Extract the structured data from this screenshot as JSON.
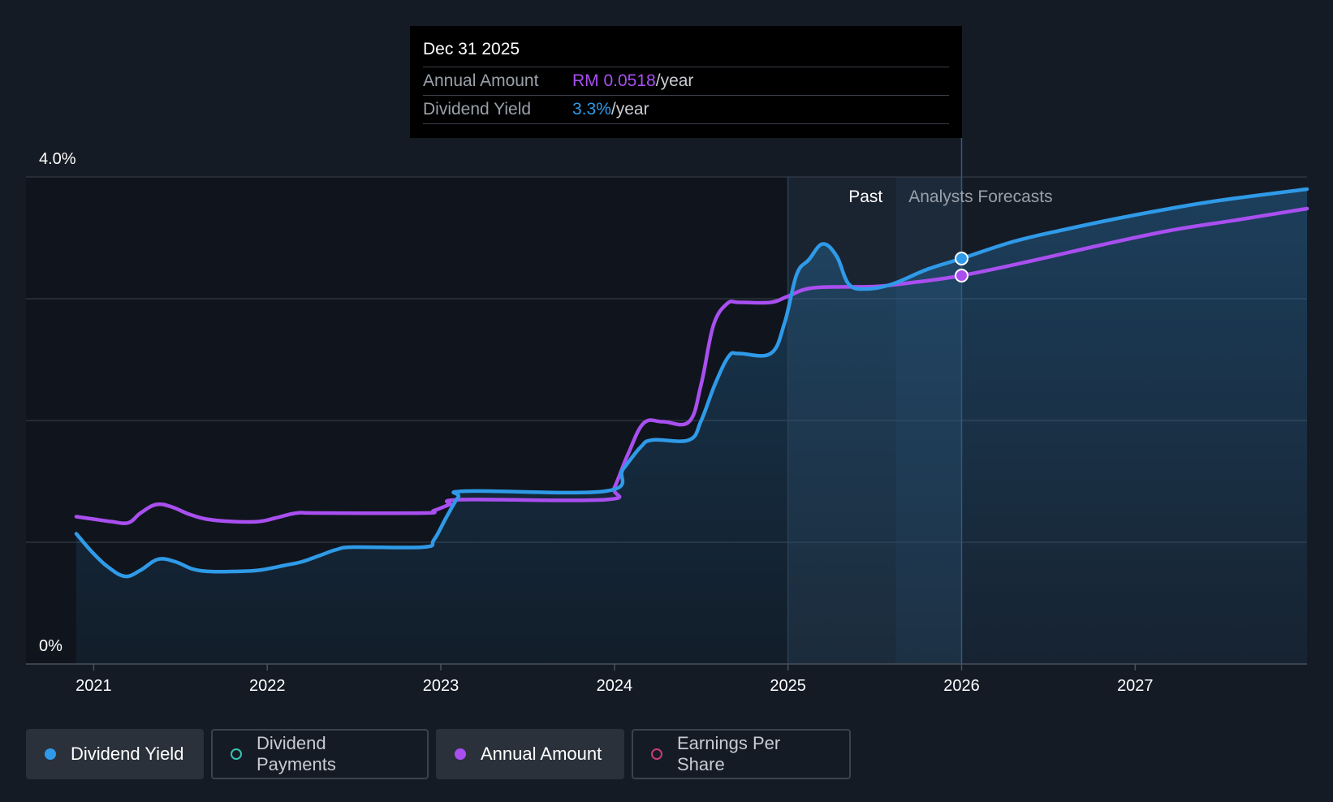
{
  "tooltip": {
    "date": "Dec 31 2025",
    "annual_amount_label": "Annual Amount",
    "annual_amount_value": "RM 0.0518",
    "annual_amount_unit": "/year",
    "dividend_yield_label": "Dividend Yield",
    "dividend_yield_value": "3.3%",
    "dividend_yield_unit": "/year"
  },
  "periods": {
    "past_label": "Past",
    "forecast_label": "Analysts Forecasts"
  },
  "legend": [
    {
      "label": "Dividend Yield",
      "color": "#2f9ae8",
      "active": true,
      "filled": true
    },
    {
      "label": "Dividend Payments",
      "color": "#36c2b0",
      "active": false,
      "filled": false
    },
    {
      "label": "Annual Amount",
      "color": "#a94ff0",
      "active": true,
      "filled": true
    },
    {
      "label": "Earnings Per Share",
      "color": "#c83c78",
      "active": false,
      "filled": false
    }
  ],
  "colors": {
    "background": "#151b25",
    "yield": "#2f9ae8",
    "amount": "#a94ff0",
    "grid": "#3a414c"
  },
  "chart_data": {
    "type": "line",
    "title": "",
    "xlabel": "",
    "ylabel": "",
    "x_ticks": [
      "2021",
      "2022",
      "2023",
      "2024",
      "2025",
      "2026",
      "2027"
    ],
    "y_ticks": [
      "0%",
      "4.0%"
    ],
    "ylim": [
      0,
      4.0
    ],
    "xlim": [
      2020.61,
      2027.99
    ],
    "past_start": 2025.0,
    "forecast_start": 2025.62,
    "hover_x": 2026.0,
    "series": [
      {
        "name": "Dividend Yield",
        "unit": "%",
        "points": [
          [
            2020.9,
            1.07
          ],
          [
            2020.99,
            0.92
          ],
          [
            2021.08,
            0.8
          ],
          [
            2021.18,
            0.72
          ],
          [
            2021.27,
            0.77
          ],
          [
            2021.37,
            0.86
          ],
          [
            2021.47,
            0.84
          ],
          [
            2021.57,
            0.78
          ],
          [
            2021.67,
            0.76
          ],
          [
            2021.8,
            0.76
          ],
          [
            2021.95,
            0.77
          ],
          [
            2022.1,
            0.81
          ],
          [
            2022.2,
            0.84
          ],
          [
            2022.3,
            0.89
          ],
          [
            2022.4,
            0.94
          ],
          [
            2022.5,
            0.96
          ],
          [
            2022.9,
            0.96
          ],
          [
            2022.96,
            1.02
          ],
          [
            2023.03,
            1.2
          ],
          [
            2023.1,
            1.37
          ],
          [
            2023.15,
            1.42
          ],
          [
            2023.95,
            1.42
          ],
          [
            2024.05,
            1.6
          ],
          [
            2024.15,
            1.78
          ],
          [
            2024.22,
            1.84
          ],
          [
            2024.43,
            1.84
          ],
          [
            2024.5,
            2.0
          ],
          [
            2024.58,
            2.3
          ],
          [
            2024.66,
            2.53
          ],
          [
            2024.72,
            2.55
          ],
          [
            2024.9,
            2.55
          ],
          [
            2024.98,
            2.8
          ],
          [
            2025.05,
            3.2
          ],
          [
            2025.12,
            3.32
          ],
          [
            2025.2,
            3.45
          ],
          [
            2025.28,
            3.35
          ],
          [
            2025.35,
            3.12
          ],
          [
            2025.45,
            3.08
          ],
          [
            2025.6,
            3.12
          ],
          [
            2025.8,
            3.24
          ],
          [
            2026.0,
            3.33
          ],
          [
            2026.3,
            3.47
          ],
          [
            2026.6,
            3.57
          ],
          [
            2026.9,
            3.66
          ],
          [
            2027.2,
            3.74
          ],
          [
            2027.5,
            3.81
          ],
          [
            2027.99,
            3.9
          ]
        ]
      },
      {
        "name": "Annual Amount",
        "unit": "RM",
        "points": [
          [
            2020.9,
            1.21
          ],
          [
            2021.0,
            1.19
          ],
          [
            2021.1,
            1.17
          ],
          [
            2021.2,
            1.16
          ],
          [
            2021.27,
            1.24
          ],
          [
            2021.36,
            1.31
          ],
          [
            2021.45,
            1.29
          ],
          [
            2021.55,
            1.23
          ],
          [
            2021.65,
            1.19
          ],
          [
            2021.8,
            1.17
          ],
          [
            2021.95,
            1.17
          ],
          [
            2022.05,
            1.2
          ],
          [
            2022.17,
            1.24
          ],
          [
            2022.3,
            1.24
          ],
          [
            2022.9,
            1.24
          ],
          [
            2022.96,
            1.26
          ],
          [
            2023.05,
            1.31
          ],
          [
            2023.12,
            1.35
          ],
          [
            2023.95,
            1.35
          ],
          [
            2024.0,
            1.45
          ],
          [
            2024.08,
            1.73
          ],
          [
            2024.17,
            1.98
          ],
          [
            2024.28,
            1.99
          ],
          [
            2024.43,
            1.99
          ],
          [
            2024.5,
            2.3
          ],
          [
            2024.57,
            2.78
          ],
          [
            2024.65,
            2.96
          ],
          [
            2024.72,
            2.97
          ],
          [
            2024.9,
            2.97
          ],
          [
            2025.0,
            3.02
          ],
          [
            2025.15,
            3.09
          ],
          [
            2025.5,
            3.1
          ],
          [
            2025.7,
            3.13
          ],
          [
            2026.0,
            3.19
          ],
          [
            2026.4,
            3.31
          ],
          [
            2026.8,
            3.44
          ],
          [
            2027.2,
            3.56
          ],
          [
            2027.6,
            3.65
          ],
          [
            2027.99,
            3.74
          ]
        ]
      }
    ],
    "hover_points": [
      {
        "series": "Dividend Yield",
        "x": 2026.0,
        "y": 3.33
      },
      {
        "series": "Annual Amount",
        "x": 2026.0,
        "y": 3.19
      }
    ]
  }
}
